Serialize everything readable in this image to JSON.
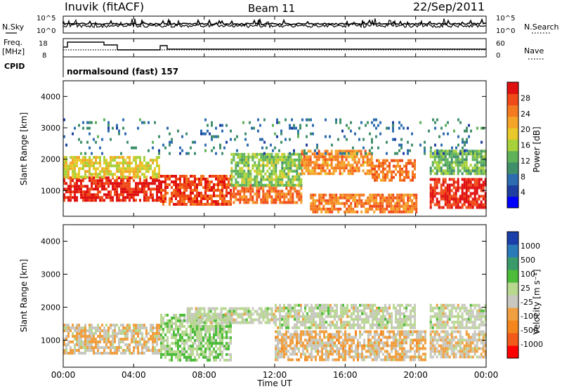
{
  "header": {
    "station": "Inuvik (fitACF)",
    "beam": "Beam 11",
    "date": "22/Sep/2011"
  },
  "noise_panel": {
    "left_label": "N.Sky",
    "right_label": "N.Search",
    "ticks_left": [
      "10^5",
      "10^0"
    ],
    "ticks_right": [
      "10^5",
      "10^0"
    ]
  },
  "freq_panel": {
    "left_label_1": "Freq.",
    "left_label_2": "[MHz]",
    "right_label": "Nave",
    "ticks_left": [
      "18",
      "8"
    ],
    "ticks_right": [
      "60",
      "0"
    ]
  },
  "cpid_panel": {
    "label": "CPID",
    "value": "normalsound (fast) 157"
  },
  "colors": {
    "power": [
      "#0000ff",
      "#1e3fa0",
      "#2e6cb0",
      "#3f8f6a",
      "#5fb25a",
      "#a8d23a",
      "#e8c82a",
      "#f5a42a",
      "#f47a20",
      "#f04a18",
      "#e01010"
    ],
    "velocity": [
      "#ff0000",
      "#f15a1a",
      "#f5861e",
      "#f0a040",
      "#c8c8c0",
      "#b8d890",
      "#4cbc3a",
      "#3a9a6a",
      "#2a7ab8",
      "#1a3faa"
    ]
  },
  "chart_data": [
    {
      "type": "heatmap",
      "title": "",
      "ylabel": "Slant Range [km]",
      "xlabel": "Time UT",
      "x_ticks": [
        "00:00",
        "04:00",
        "08:00",
        "12:00",
        "16:00",
        "20:00",
        "00:00"
      ],
      "y_ticks": [
        "1000",
        "2000",
        "3000",
        "4000"
      ],
      "ylim": [
        180,
        4500
      ],
      "xlim_hours": [
        0,
        24
      ],
      "colorbar": {
        "label": "Power [dB]",
        "ticks": [
          "28",
          "24",
          "20",
          "16",
          "12",
          "8",
          "4"
        ],
        "range": [
          0,
          30
        ]
      },
      "regions": [
        {
          "x": [
            0,
            5.5
          ],
          "y": [
            650,
            1450
          ],
          "value": 28
        },
        {
          "x": [
            0,
            5.5
          ],
          "y": [
            1450,
            2100
          ],
          "value": 17
        },
        {
          "x": [
            5.5,
            9.5
          ],
          "y": [
            600,
            1500
          ],
          "value": 26
        },
        {
          "x": [
            9.5,
            13.5
          ],
          "y": [
            600,
            1200
          ],
          "value": 24
        },
        {
          "x": [
            9.5,
            13.5
          ],
          "y": [
            1200,
            2200
          ],
          "value": 14
        },
        {
          "x": [
            13.5,
            17.5
          ],
          "y": [
            1500,
            2300
          ],
          "value": 22
        },
        {
          "x": [
            14,
            20
          ],
          "y": [
            300,
            900
          ],
          "value": 23
        },
        {
          "x": [
            17.5,
            20
          ],
          "y": [
            1300,
            2000
          ],
          "value": 24
        },
        {
          "x": [
            20.8,
            24
          ],
          "y": [
            500,
            1400
          ],
          "value": 28
        },
        {
          "x": [
            20.8,
            24
          ],
          "y": [
            1500,
            2300
          ],
          "value": 13
        },
        {
          "x": [
            0,
            24
          ],
          "y": [
            2200,
            3300
          ],
          "value": 8
        }
      ]
    },
    {
      "type": "heatmap",
      "title": "",
      "ylabel": "Slant Range [km]",
      "xlabel": "Time UT",
      "x_ticks": [
        "00:00",
        "04:00",
        "08:00",
        "12:00",
        "16:00",
        "20:00",
        "00:00"
      ],
      "y_ticks": [
        "1000",
        "2000",
        "3000",
        "4000"
      ],
      "ylim": [
        180,
        4500
      ],
      "xlim_hours": [
        0,
        24
      ],
      "colorbar": {
        "label": "Velocity [m s⁻¹]",
        "ticks": [
          "1000",
          "500",
          "100",
          "25",
          "-25",
          "-100",
          "-500",
          "-1000"
        ],
        "range": [
          -1000,
          1000
        ]
      },
      "regions": [
        {
          "x": [
            0,
            5.5
          ],
          "y": [
            600,
            1500
          ],
          "value": -150
        },
        {
          "x": [
            5.5,
            9.5
          ],
          "y": [
            400,
            1800
          ],
          "value": 150
        },
        {
          "x": [
            7,
            12
          ],
          "y": [
            1500,
            2000
          ],
          "value": 0
        },
        {
          "x": [
            12,
            20
          ],
          "y": [
            1400,
            2100
          ],
          "value": 0
        },
        {
          "x": [
            12,
            20.5
          ],
          "y": [
            400,
            1300
          ],
          "value": -200
        },
        {
          "x": [
            20.8,
            24
          ],
          "y": [
            500,
            1300
          ],
          "value": -150
        },
        {
          "x": [
            20.8,
            24
          ],
          "y": [
            1400,
            2100
          ],
          "value": 0
        }
      ]
    }
  ]
}
